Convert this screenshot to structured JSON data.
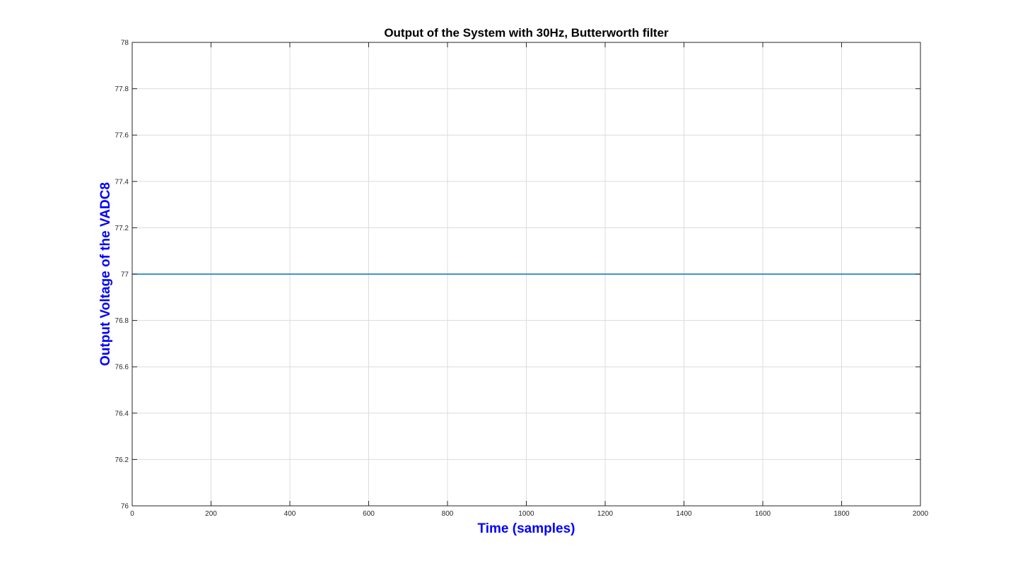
{
  "chart_data": {
    "type": "line",
    "title": "Output of the System with 30Hz, Butterworth filter",
    "xlabel": "Time (samples)",
    "ylabel": "Output Voltage of the VADC8",
    "xlim": [
      0,
      2000
    ],
    "ylim": [
      76,
      78
    ],
    "xticks": [
      0,
      200,
      400,
      600,
      800,
      1000,
      1200,
      1400,
      1600,
      1800,
      2000
    ],
    "yticks": [
      76,
      76.2,
      76.4,
      76.6,
      76.8,
      77,
      77.2,
      77.4,
      77.6,
      77.8,
      78
    ],
    "xtick_labels": [
      "0",
      "200",
      "400",
      "600",
      "800",
      "1000",
      "1200",
      "1400",
      "1600",
      "1800",
      "2000"
    ],
    "ytick_labels": [
      "76",
      "76.2",
      "76.4",
      "76.6",
      "76.8",
      "77",
      "77.2",
      "77.4",
      "77.6",
      "77.8",
      "78"
    ],
    "grid": true,
    "series": [
      {
        "x": [
          0,
          2000
        ],
        "values": [
          77,
          77
        ],
        "color": "#0072bd"
      }
    ],
    "label_color": "#0000ff"
  }
}
